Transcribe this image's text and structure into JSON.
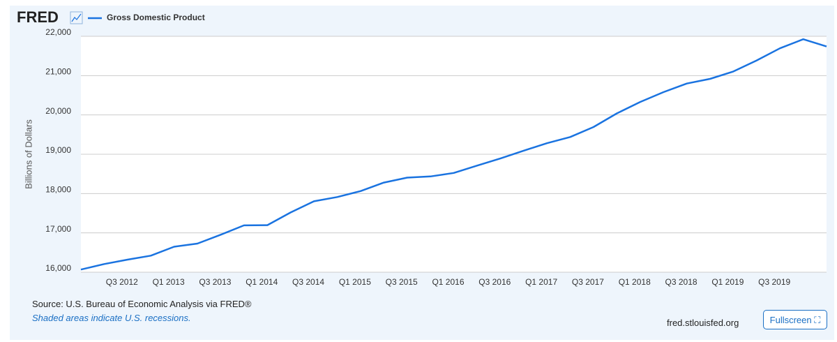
{
  "logo": "FRED",
  "chart_data": {
    "type": "line",
    "y_label": "Billions of Dollars",
    "categories": [
      null,
      null,
      "Q3 2012",
      null,
      "Q1 2013",
      null,
      "Q3 2013",
      null,
      "Q1 2014",
      null,
      "Q3 2014",
      null,
      "Q1 2015",
      null,
      "Q3 2015",
      null,
      "Q1 2016",
      null,
      "Q3 2016",
      null,
      "Q1 2017",
      null,
      "Q3 2017",
      null,
      "Q1 2018",
      null,
      "Q3 2018",
      null,
      "Q1 2019",
      null,
      "Q3 2019",
      null,
      null
    ],
    "series": [
      {
        "name": "Gross Domestic Product",
        "color": "#1a73e0",
        "values": [
          16068,
          16207,
          16319,
          16420,
          16648,
          16728,
          16953,
          17192,
          17197,
          17519,
          17804,
          17912,
          18063,
          18280,
          18406,
          18435,
          18525,
          18711,
          18892,
          19090,
          19280,
          19438,
          19692,
          20038,
          20329,
          20580,
          20799,
          20917,
          21105,
          21385,
          21695,
          21926,
          21740
        ]
      }
    ],
    "ylim": [
      16000,
      22000
    ],
    "yticks": [
      {
        "value": 16000,
        "label": "16,000"
      },
      {
        "value": 17000,
        "label": "17,000"
      },
      {
        "value": 18000,
        "label": "18,000"
      },
      {
        "value": 19000,
        "label": "19,000"
      },
      {
        "value": 20000,
        "label": "20,000"
      },
      {
        "value": 21000,
        "label": "21,000"
      },
      {
        "value": 22000,
        "label": "22,000"
      }
    ],
    "grid": true
  },
  "footer": {
    "source": "Source: U.S. Bureau of Economic Analysis via FRED®",
    "note": "Shaded areas indicate U.S. recessions.",
    "site": "fred.stlouisfed.org",
    "button": "Fullscreen"
  }
}
